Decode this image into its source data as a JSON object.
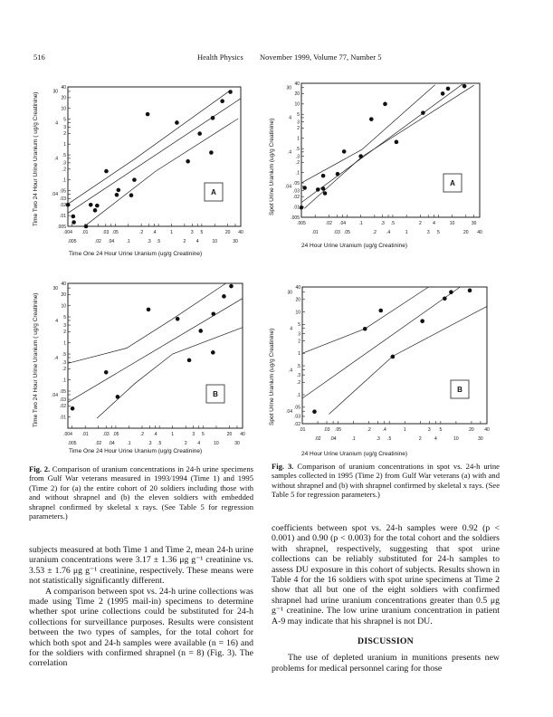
{
  "header": {
    "page_number": "516",
    "journal": "Health Physics",
    "issue": "November 1999, Volume 77, Number 5"
  },
  "fig2": {
    "ylabel": "Time Two  24 Hour Urine Uranium (  ug/g Creatinine)",
    "xlabel": "Time One 24 Hour Urine Uranium (ug/g Creatinine)",
    "caption_label": "Fig. 2.",
    "caption": "Comparison of uranium concentrations in 24-h urine specimens from Gulf War veterans measured in 1993/1994 (Time 1) and 1995 (Time 2) for (a) the entire cohort of 20 soldiers including those with and without shrapnel and (b) the eleven soldiers with embedded shrapnel confirmed by skeletal x rays. (See Table 5 for regression parameters.)"
  },
  "fig3": {
    "ylabel": "Spot Urine Uranium (ug/g Creatinine)",
    "xlabel": "24 Hour Urine Uranium (ug/g Creatinine)",
    "caption_label": "Fig. 3.",
    "caption": "Comparison of uranium concentrations in spot vs. 24-h urine samples collected in 1995 (Time 2) from Gulf War veterans (a) with and without shrapnel and (b) with shrapnel confirmed by skeletal x rays. (See Table 5 for regression parameters.)"
  },
  "chart_data": [
    {
      "id": "fig2a",
      "type": "scatter",
      "panel_label": "A",
      "xscale": "log",
      "yscale": "log",
      "xlim": [
        0.004,
        40
      ],
      "ylim": [
        0.005,
        40
      ],
      "xlabel": "Time One 24 Hour Urine Uranium (ug/g Creatinine)",
      "ylabel": "Time Two  24 Hour Urine Uranium (  ug/g Creatinine)",
      "y_ticks": [
        "40",
        "30",
        "20",
        "10",
        "5",
        "4",
        "3",
        "2",
        "1",
        ".5",
        ".4",
        ".3",
        ".2",
        ".1",
        ".05",
        ".04",
        ".03",
        ".02",
        ".01",
        ".005"
      ],
      "x_ticks_row1": [
        ".004",
        ".01",
        ".03",
        ".05",
        ".2",
        ".4",
        "1",
        "3",
        "5",
        "20",
        "40"
      ],
      "x_ticks_row2": [
        ".005",
        ".02",
        ".04",
        ".1",
        ".3",
        ".5",
        "2",
        "4",
        "10",
        "30"
      ],
      "points": [
        [
          0.004,
          0.02
        ],
        [
          0.0053,
          0.0095
        ],
        [
          0.0055,
          0.0065
        ],
        [
          0.0105,
          0.005
        ],
        [
          0.0135,
          0.02
        ],
        [
          0.017,
          0.014
        ],
        [
          0.019,
          0.019
        ],
        [
          0.031,
          0.175
        ],
        [
          0.054,
          0.038
        ],
        [
          0.059,
          0.052
        ],
        [
          0.117,
          0.037
        ],
        [
          0.138,
          0.1
        ],
        [
          0.28,
          6.9
        ],
        [
          1.33,
          4.0
        ],
        [
          2.4,
          0.33
        ],
        [
          4.5,
          1.97
        ],
        [
          8.3,
          0.58
        ],
        [
          9.0,
          5.4
        ],
        [
          15,
          16
        ],
        [
          23,
          29
        ]
      ],
      "regression_lines": {
        "fit": [
          [
            0.004,
            0.0117
          ],
          [
            40,
            18.9
          ]
        ],
        "upper": [
          [
            0.004,
            0.021
          ],
          [
            0.139,
            0.38
          ],
          [
            23,
            32
          ]
        ],
        "lower": [
          [
            0.0105,
            0.0054
          ],
          [
            0.43,
            0.175
          ],
          [
            35,
            5.2
          ]
        ]
      }
    },
    {
      "id": "fig3a",
      "type": "scatter",
      "panel_label": "A",
      "xscale": "log",
      "yscale": "log",
      "xlim": [
        0.005,
        40
      ],
      "ylim": [
        0.005,
        40
      ],
      "xlabel": "24 Hour Urine Uranium (ug/g Creatinine)",
      "ylabel": "Spot Urine Uranium (ug/g Creatinine)",
      "y_ticks": [
        "40",
        "30",
        "20",
        "10",
        "5",
        "4",
        "3",
        "2",
        "1",
        ".5",
        ".4",
        ".3",
        ".2",
        ".1",
        ".05",
        ".04",
        ".03",
        ".02",
        ".01",
        ".005"
      ],
      "x_ticks_row1": [
        ".005",
        ".02",
        ".04",
        ".1",
        ".3",
        ".5",
        "2",
        "4",
        "10",
        "30"
      ],
      "x_ticks_row2": [
        ".01",
        ".03",
        ".05",
        ".2",
        ".4",
        "1",
        "3",
        "5",
        "20",
        "40"
      ],
      "points": [
        [
          0.005,
          0.0096
        ],
        [
          0.0059,
          0.036
        ],
        [
          0.0115,
          0.032
        ],
        [
          0.015,
          0.081
        ],
        [
          0.015,
          0.034
        ],
        [
          0.0164,
          0.025
        ],
        [
          0.031,
          0.091
        ],
        [
          0.043,
          0.41
        ],
        [
          0.1,
          0.3
        ],
        [
          0.17,
          3.6
        ],
        [
          0.34,
          10
        ],
        [
          0.6,
          0.78
        ],
        [
          2.3,
          5.5
        ],
        [
          6.2,
          20
        ],
        [
          8.1,
          28
        ],
        [
          18.5,
          33
        ]
      ],
      "regression_lines": {
        "fit": [
          [
            0.005,
            0.0135
          ],
          [
            17,
            38
          ]
        ],
        "upper": [
          [
            0.005,
            0.05
          ],
          [
            0.106,
            0.47
          ],
          [
            4.2,
            36
          ]
        ],
        "lower": [
          [
            0.0058,
            0.009
          ],
          [
            0.106,
            0.29
          ],
          [
            30,
            35
          ]
        ]
      }
    },
    {
      "id": "fig2b",
      "type": "scatter",
      "panel_label": "B",
      "xscale": "log",
      "yscale": "log",
      "xlim": [
        0.004,
        40
      ],
      "ylim": [
        0.005,
        40
      ],
      "xlabel": "Time One 24 Hour Urine Uranium (ug/g Creatinine)",
      "ylabel": "Time Two  24 Hour Urine Uranium (  ug/g Creatinine)",
      "y_ticks": [
        "40",
        "30",
        "20",
        "10",
        "5",
        "4",
        "3",
        "2",
        "1",
        ".5",
        ".4",
        ".3",
        ".2",
        ".1",
        ".05",
        ".04",
        ".03",
        ".02",
        ".01"
      ],
      "x_ticks_row1": [
        ".004",
        ".01",
        ".03",
        ".05",
        ".2",
        ".4",
        "1",
        "3",
        "5",
        "20",
        "40"
      ],
      "x_ticks_row2": [
        ".005",
        ".02",
        ".04",
        ".1",
        ".3",
        ".5",
        "2",
        "4",
        "10",
        "30"
      ],
      "points": [
        [
          0.0051,
          0.017
        ],
        [
          0.03,
          0.16
        ],
        [
          0.055,
          0.035
        ],
        [
          0.28,
          7.9
        ],
        [
          1.3,
          4.4
        ],
        [
          2.4,
          0.34
        ],
        [
          4.4,
          2.1
        ],
        [
          8.4,
          0.55
        ],
        [
          8.6,
          6.0
        ],
        [
          15,
          17.9
        ],
        [
          22,
          33.6
        ]
      ],
      "regression_lines": {
        "fit": [
          [
            0.004,
            0.025
          ],
          [
            40,
            15.7
          ]
        ],
        "upper": [
          [
            0.004,
            0.28
          ],
          [
            0.089,
            0.72
          ],
          [
            1,
            4.4
          ],
          [
            16.6,
            40
          ]
        ],
        "lower": [
          [
            0.0185,
            0.0093
          ],
          [
            0.14,
            0.082
          ],
          [
            1,
            0.5
          ],
          [
            40,
            2.6
          ]
        ]
      }
    },
    {
      "id": "fig3b",
      "type": "scatter",
      "panel_label": "B",
      "xscale": "log",
      "yscale": "log",
      "xlim": [
        0.01,
        40
      ],
      "ylim": [
        0.02,
        40
      ],
      "xlabel": "24 Hour Urine Uranium (ug/g Creatinine)",
      "ylabel": "Spot Urine Uranium (ug/g Creatinine)",
      "y_ticks": [
        "40",
        "30",
        "20",
        "10",
        "5",
        "4",
        "3",
        "2",
        "1",
        ".5",
        ".4",
        ".3",
        ".2",
        ".1",
        ".05",
        ".04",
        ".03",
        ".02"
      ],
      "x_ticks_row1": [
        ".01",
        ".03",
        ".05",
        ".2",
        ".4",
        "1",
        "3",
        "5",
        "20",
        "40"
      ],
      "x_ticks_row2": [
        ".02",
        ".04",
        ".1",
        ".3",
        ".5",
        "2",
        "4",
        "10",
        "30"
      ],
      "points": [
        [
          0.0173,
          0.039
        ],
        [
          0.167,
          3.9
        ],
        [
          0.34,
          10.8
        ],
        [
          0.58,
          0.83
        ],
        [
          2.2,
          6.0
        ],
        [
          6,
          21
        ],
        [
          8.0,
          30
        ],
        [
          18.5,
          33
        ]
      ],
      "regression_lines": {
        "fit": [
          [
            0.01,
            0.082
          ],
          [
            12,
            40
          ]
        ],
        "upper": [
          [
            0.01,
            1
          ],
          [
            0.167,
            3.9
          ],
          [
            2.9,
            40
          ]
        ],
        "lower": [
          [
            0.033,
            0.034
          ],
          [
            0.58,
            0.85
          ],
          [
            40,
            13.6
          ]
        ]
      }
    }
  ],
  "left_column": {
    "p1": "subjects measured at both Time 1 and Time 2, mean 24-h urine uranium concentrations were 3.17 ± 1.36 μg g⁻¹ creatinine vs. 3.53 ± 1.76 μg g⁻¹ creatinine, respectively. These means were not statistically significantly different.",
    "p2": "A comparison between spot vs. 24-h urine collections was made using Time 2 (1995 mail-in) specimens to determine whether spot urine collections could be substituted for 24-h collections for surveillance purposes. Results were consistent between the two types of samples, for the total cohort for which both spot and 24-h samples were available (n = 16) and for the soldiers with confirmed shrapnel (n = 8) (Fig. 3). The correlation"
  },
  "right_column": {
    "p1": "coefficients between spot vs. 24-h samples were 0.92 (p < 0.001) and 0.90 (p < 0.003) for the total cohort and the soldiers with shrapnel, respectively, suggesting that spot urine collections can be reliably substituted for 24-h samples to assess DU exposure in this cohort of subjects. Results shown in Table 4 for the 16 soldiers with spot urine specimens at Time 2 show that all but one of the eight soldiers with confirmed shrapnel had urine uranium concentrations greater than 0.5 μg g⁻¹ creatinine. The low urine uranium concentration in patient A-9 may indicate that his shrapnel is not DU.",
    "heading": "DISCUSSION",
    "p2": "The use of depleted uranium in munitions presents new problems for medical personnel caring for those"
  }
}
